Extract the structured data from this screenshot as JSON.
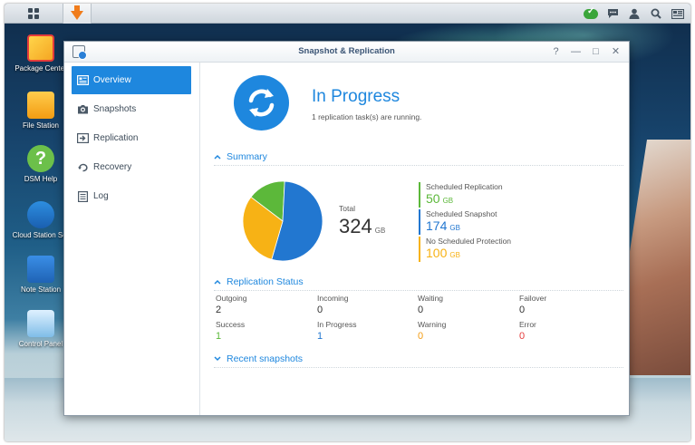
{
  "desktop": {
    "icons": [
      {
        "label": "Package Center"
      },
      {
        "label": "File Station"
      },
      {
        "label": "DSM Help"
      },
      {
        "label": "Cloud Station Ser"
      },
      {
        "label": "Note Station"
      },
      {
        "label": "Control Panel"
      }
    ]
  },
  "taskbar": {
    "main_menu_icon": "grid-icon",
    "open_app_icon": "download-arrow-icon",
    "right_icons": [
      "cloud-sync-ok-icon",
      "chat-icon",
      "user-icon",
      "search-icon",
      "widgets-icon"
    ]
  },
  "window": {
    "title": "Snapshot & Replication",
    "controls": [
      "?",
      "—",
      "□",
      "✕"
    ]
  },
  "sidebar": {
    "items": [
      {
        "label": "Overview",
        "icon": "overview-icon",
        "active": true
      },
      {
        "label": "Snapshots",
        "icon": "camera-icon",
        "active": false
      },
      {
        "label": "Replication",
        "icon": "replication-icon",
        "active": false
      },
      {
        "label": "Recovery",
        "icon": "recovery-icon",
        "active": false
      },
      {
        "label": "Log",
        "icon": "log-icon",
        "active": false
      }
    ]
  },
  "overview": {
    "status_title": "In Progress",
    "status_subtitle": "1 replication task(s) are running.",
    "summary": {
      "heading": "Summary",
      "total_label": "Total",
      "total_value": "324",
      "total_unit": "GB",
      "legend": [
        {
          "name": "Scheduled Replication",
          "value": "50",
          "unit": "GB",
          "color": "#5cb83a"
        },
        {
          "name": "Scheduled Snapshot",
          "value": "174",
          "unit": "GB",
          "color": "#2277d0"
        },
        {
          "name": "No Scheduled Protection",
          "value": "100",
          "unit": "GB",
          "color": "#f7b215"
        }
      ]
    },
    "replication_status": {
      "heading": "Replication Status",
      "cells": [
        {
          "label": "Outgoing",
          "value": "2",
          "color": "#333333"
        },
        {
          "label": "Incoming",
          "value": "0",
          "color": "#333333"
        },
        {
          "label": "Waiting",
          "value": "0",
          "color": "#333333"
        },
        {
          "label": "Failover",
          "value": "0",
          "color": "#333333"
        },
        {
          "label": "Success",
          "value": "1",
          "color": "#5cb83a"
        },
        {
          "label": "In Progress",
          "value": "1",
          "color": "#2277d0"
        },
        {
          "label": "Warning",
          "value": "0",
          "color": "#f39c12"
        },
        {
          "label": "Error",
          "value": "0",
          "color": "#e53b3b"
        }
      ]
    },
    "recent_snapshots": {
      "heading": "Recent snapshots"
    }
  },
  "chart_data": {
    "type": "pie",
    "categories": [
      "Scheduled Replication",
      "Scheduled Snapshot",
      "No Scheduled Protection"
    ],
    "values": [
      50,
      174,
      100
    ],
    "colors": [
      "#5cb83a",
      "#2277d0",
      "#f7b215"
    ],
    "title": "",
    "total": 324,
    "unit": "GB"
  }
}
